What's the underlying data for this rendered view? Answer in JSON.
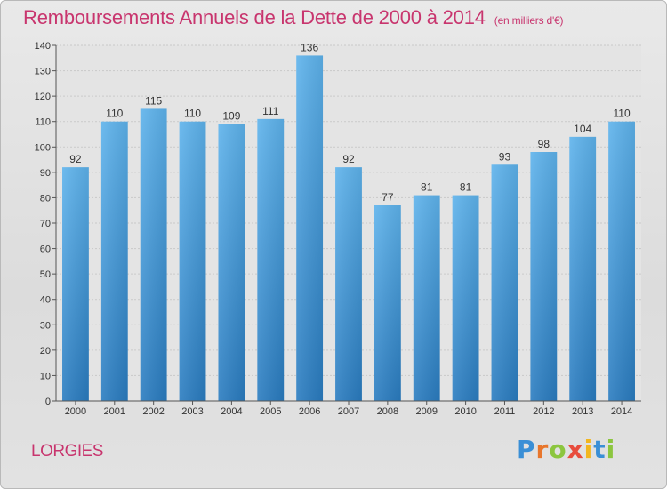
{
  "chart_data": {
    "type": "bar",
    "title": "Remboursements Annuels de la Dette de 2000 à 2014",
    "unit": "(en milliers d'€)",
    "categories": [
      "2000",
      "2001",
      "2002",
      "2003",
      "2004",
      "2005",
      "2006",
      "2007",
      "2008",
      "2009",
      "2010",
      "2011",
      "2012",
      "2013",
      "2014"
    ],
    "values": [
      92,
      110,
      115,
      110,
      109,
      111,
      136,
      92,
      77,
      81,
      81,
      93,
      98,
      104,
      110
    ],
    "ylim": [
      0,
      140
    ],
    "yticks": [
      0,
      10,
      20,
      30,
      40,
      50,
      60,
      70,
      80,
      90,
      100,
      110,
      120,
      130,
      140
    ],
    "xlabel": "",
    "ylabel": "",
    "grid": true
  },
  "commune": "LORGIES",
  "logo": {
    "letters": [
      "P",
      "r",
      "o",
      "x",
      "i",
      "t",
      "i"
    ],
    "colors": [
      "#3a8fd6",
      "#e8762c",
      "#8cc63f",
      "#e84c3d",
      "#f2b61f",
      "#3a8fd6",
      "#8cc63f"
    ]
  },
  "colors": {
    "bar_top": "#5eb3ec",
    "bar_bottom": "#2a7cc0",
    "accent": "#c8356e"
  }
}
